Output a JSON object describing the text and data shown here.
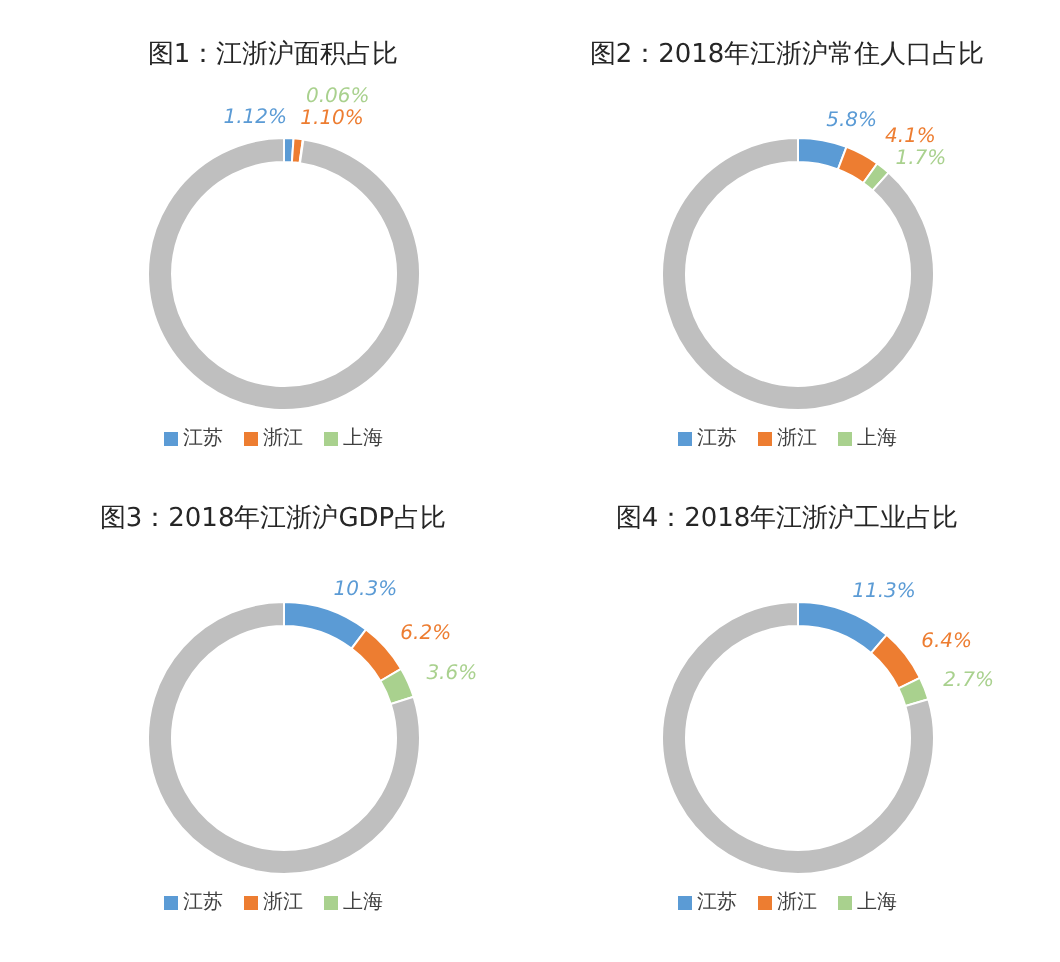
{
  "chart_data": [
    {
      "type": "donut",
      "title": "图1：江浙沪面积占比",
      "categories": [
        "江苏",
        "浙江",
        "上海",
        null
      ],
      "values": [
        1.12,
        1.1,
        0.06,
        97.72
      ],
      "colors": [
        "#5b9bd5",
        "#ed7d31",
        "#a9d18e",
        "#bfbfbf"
      ],
      "value_labels": [
        "1.12%",
        "1.10%",
        "0.06%",
        null
      ],
      "legend": "bottom"
    },
    {
      "type": "donut",
      "title": "图2：2018年江浙沪常住人口占比",
      "categories": [
        "江苏",
        "浙江",
        "上海",
        null
      ],
      "values": [
        5.8,
        4.1,
        1.7,
        88.4
      ],
      "colors": [
        "#5b9bd5",
        "#ed7d31",
        "#a9d18e",
        "#bfbfbf"
      ],
      "value_labels": [
        "5.8%",
        "4.1%",
        "1.7%",
        null
      ],
      "legend": "bottom"
    },
    {
      "type": "donut",
      "title": "图3：2018年江浙沪GDP占比",
      "categories": [
        "江苏",
        "浙江",
        "上海",
        null
      ],
      "values": [
        10.3,
        6.2,
        3.6,
        79.9
      ],
      "colors": [
        "#5b9bd5",
        "#ed7d31",
        "#a9d18e",
        "#bfbfbf"
      ],
      "value_labels": [
        "10.3%",
        "6.2%",
        "3.6%",
        null
      ],
      "legend": "bottom"
    },
    {
      "type": "donut",
      "title": "图4：2018年江浙沪工业占比",
      "categories": [
        "江苏",
        "浙江",
        "上海",
        null
      ],
      "values": [
        11.3,
        6.4,
        2.7,
        79.6
      ],
      "colors": [
        "#5b9bd5",
        "#ed7d31",
        "#a9d18e",
        "#bfbfbf"
      ],
      "value_labels": [
        "11.3%",
        "6.4%",
        "2.7%",
        null
      ],
      "legend": "bottom"
    }
  ]
}
